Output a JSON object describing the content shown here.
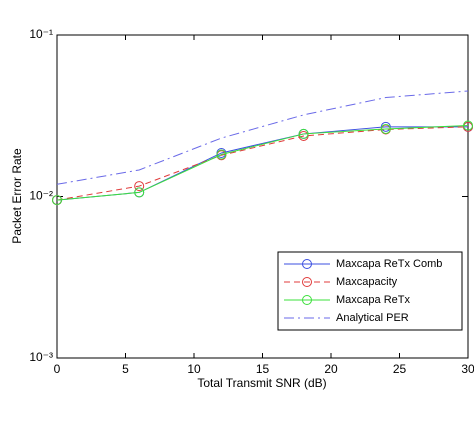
{
  "chart_data": {
    "type": "line",
    "x_label": "Total Transmit SNR (dB)",
    "y_label": "Packet Error Rate",
    "x": [
      0,
      6,
      12,
      18,
      24,
      30
    ],
    "series": [
      {
        "name": "Maxcapa ReTx Comb",
        "color": "#3b4fe0",
        "dash": "solid",
        "marker": "circle",
        "values": [
          0.0095,
          0.0106,
          0.0186,
          0.0244,
          0.027,
          0.027
        ]
      },
      {
        "name": "Maxcapacity",
        "color": "#e03b3b",
        "dash": "dashed",
        "marker": "circle",
        "values": [
          0.0095,
          0.0116,
          0.018,
          0.0237,
          0.026,
          0.027
        ]
      },
      {
        "name": "Maxcapa ReTx",
        "color": "#3be03b",
        "dash": "solid",
        "marker": "circle",
        "values": [
          0.0095,
          0.0106,
          0.0182,
          0.0244,
          0.0262,
          0.0275
        ]
      },
      {
        "name": "Analytical PER",
        "color": "#6a6ae8",
        "dash": "dashdot",
        "marker": "none",
        "values": [
          0.0119,
          0.0146,
          0.023,
          0.032,
          0.041,
          0.045
        ]
      }
    ],
    "xlim": [
      0,
      30
    ],
    "xticks": [
      0,
      5,
      10,
      15,
      20,
      25,
      30
    ],
    "ylim": [
      0.001,
      0.1
    ],
    "ylog": true,
    "yticks": [
      {
        "value": 0.001,
        "label": "10⁻³"
      },
      {
        "value": 0.01,
        "label": "10⁻²"
      },
      {
        "value": 0.1,
        "label": "10⁻¹"
      }
    ],
    "legend": "lower right"
  }
}
